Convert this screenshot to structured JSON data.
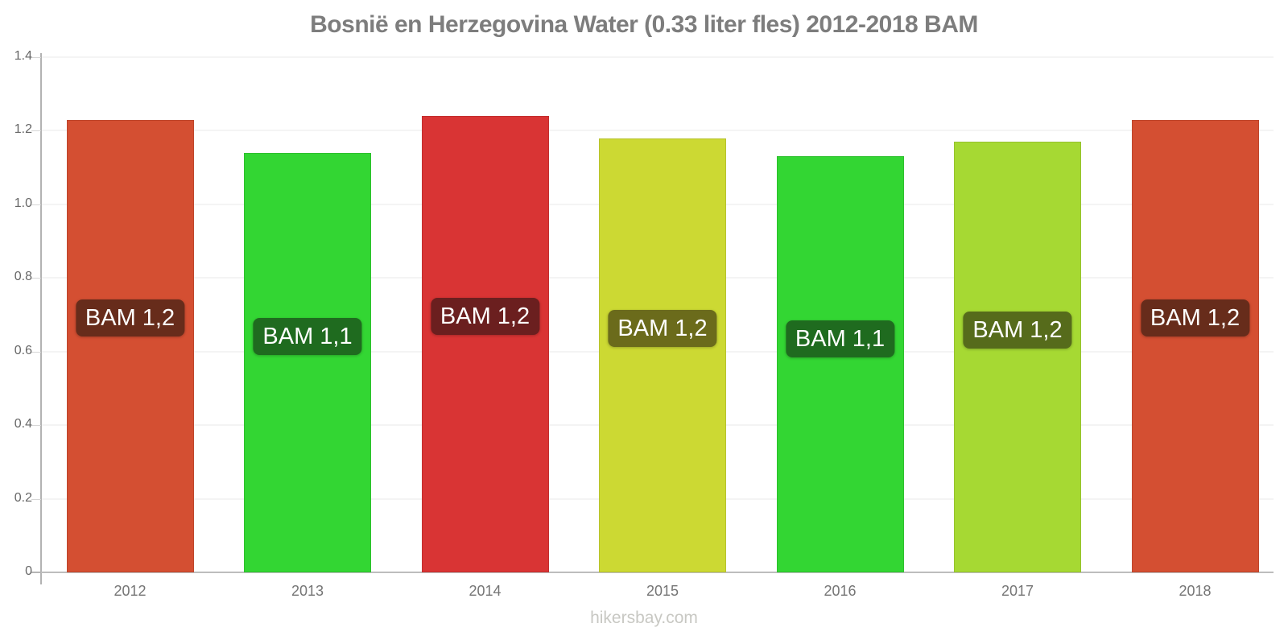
{
  "chart_data": {
    "type": "bar",
    "title": "Bosnië en Herzegovina Water (0.33 liter fles) 2012-2018 BAM",
    "xlabel": "",
    "ylabel": "",
    "categories": [
      "2012",
      "2013",
      "2014",
      "2015",
      "2016",
      "2017",
      "2018"
    ],
    "values": [
      1.23,
      1.14,
      1.24,
      1.18,
      1.13,
      1.17,
      1.23
    ],
    "bar_labels": [
      "BAM 1,2",
      "BAM 1,1",
      "BAM 1,2",
      "BAM 1,2",
      "BAM 1,1",
      "BAM 1,2",
      "BAM 1,2"
    ],
    "bar_colors": [
      "#d44f32",
      "#33d633",
      "#d93434",
      "#ccd933",
      "#33d633",
      "#a6d933",
      "#d44f32"
    ],
    "label_bg_colors": [
      "#672c1b",
      "#1f6b1f",
      "#6b1f1f",
      "#6b6b1b",
      "#1f6b1f",
      "#566b1b",
      "#672c1b"
    ],
    "ylim": [
      0,
      1.4
    ],
    "yticks": [
      0,
      0.2,
      0.4,
      0.6,
      0.8,
      1.0,
      1.2,
      1.4
    ],
    "ytick_labels": [
      "0",
      "0.2",
      "0.4",
      "0.6",
      "0.8",
      "1.0",
      "1.2",
      "1.4"
    ],
    "grid": true,
    "legend": false,
    "currency": "BAM"
  },
  "footer": {
    "text": "hikersbay.com"
  }
}
